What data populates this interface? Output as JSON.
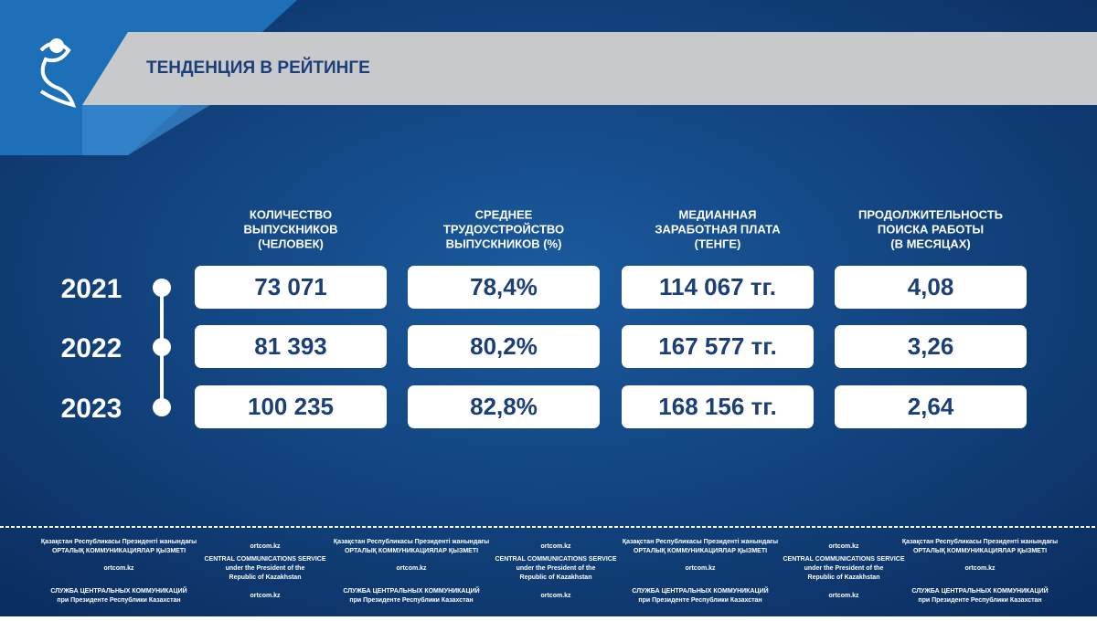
{
  "header": {
    "title": "ТЕНДЕНЦИЯ В РЕЙТИНГЕ"
  },
  "table": {
    "columns": [
      [
        "КОЛИЧЕСТВО",
        "ВЫПУСКНИКОВ",
        "(ЧЕЛОВЕК)"
      ],
      [
        "СРЕДНЕЕ",
        "ТРУДОУСТРОЙСТВО",
        "ВЫПУСКНИКОВ (%)"
      ],
      [
        "МЕДИАННАЯ",
        "ЗАРАБОТНАЯ ПЛАТА",
        "(ТЕНГЕ)"
      ],
      [
        "ПРОДОЛЖИТЕЛЬНОСТЬ",
        "ПОИСКА РАБОТЫ",
        "(В МЕСЯЦАХ)"
      ]
    ],
    "rows": [
      {
        "year": "2021",
        "cells": [
          "73 071",
          "78,4%",
          "114 067 тг.",
          "4,08"
        ]
      },
      {
        "year": "2022",
        "cells": [
          "81 393",
          "80,2%",
          "167 577 тг.",
          "3,26"
        ]
      },
      {
        "year": "2023",
        "cells": [
          "100 235",
          "82,8%",
          "168 156 тг.",
          "2,64"
        ]
      }
    ]
  },
  "footer": {
    "rows": [
      [
        [
          "Қазақстан Республикасы Президенті жанындағы",
          "ОРТАЛЫҚ КОММУНИКАЦИЯЛАР ҚЫЗМЕТІ"
        ],
        [
          "ortcom.kz"
        ],
        [
          "Қазақстан Республикасы Президенті жанындағы",
          "ОРТАЛЫҚ КОММУНИКАЦИЯЛАР ҚЫЗМЕТІ"
        ],
        [
          "ortcom.kz"
        ],
        [
          "Қазақстан Республикасы Президенті жанындағы",
          "ОРТАЛЫҚ КОММУНИКАЦИЯЛАР ҚЫЗМЕТІ"
        ],
        [
          "ortcom.kz"
        ],
        [
          "Қазақстан Республикасы Президенті жанындағы",
          "ОРТАЛЫҚ КОММУНИКАЦИЯЛАР ҚЫЗМЕТІ"
        ]
      ],
      [
        [
          "ortcom.kz"
        ],
        [
          "CENTRAL COMMUNICATIONS SERVICE",
          "under the President of the",
          "Republic of Kazakhstan"
        ],
        [
          "ortcom.kz"
        ],
        [
          "CENTRAL COMMUNICATIONS SERVICE",
          "under the President of the",
          "Republic of Kazakhstan"
        ],
        [
          "ortcom.kz"
        ],
        [
          "CENTRAL COMMUNICATIONS SERVICE",
          "under the President of the",
          "Republic of Kazakhstan"
        ],
        [
          "ortcom.kz"
        ]
      ],
      [
        [
          "СЛУЖБА ЦЕНТРАЛЬНЫХ КОММУНИКАЦИЙ",
          "при Президенте Республики Казахстан"
        ],
        [
          "ortcom.kz"
        ],
        [
          "СЛУЖБА ЦЕНТРАЛЬНЫХ КОММУНИКАЦИЙ",
          "при Президенте Республики Казахстан"
        ],
        [
          "ortcom.kz"
        ],
        [
          "СЛУЖБА ЦЕНТРАЛЬНЫХ КОММУНИКАЦИЙ",
          "при Президенте Республики Казахстан"
        ],
        [
          "ortcom.kz"
        ],
        [
          "СЛУЖБА ЦЕНТРАЛЬНЫХ КОММУНИКАЦИЙ",
          "при Президенте Республики Казахстан"
        ]
      ]
    ]
  }
}
